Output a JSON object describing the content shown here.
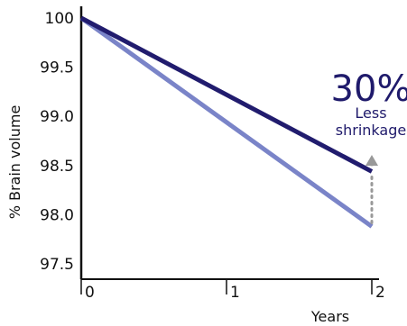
{
  "chart_data": {
    "type": "line",
    "xlabel": "Years",
    "ylabel": "% Brain volume",
    "xlim": [
      0,
      2
    ],
    "ylim": [
      97.5,
      100
    ],
    "x_ticks": [
      "0",
      "1",
      "2"
    ],
    "y_ticks": [
      "100",
      "99.5",
      "99.0",
      "98.5",
      "98.0",
      "97.5"
    ],
    "grid": false,
    "series": [
      {
        "color": "#211c6e",
        "x": [
          0,
          2
        ],
        "y": [
          100,
          98.44
        ]
      },
      {
        "color": "#7a84c8",
        "x": [
          0,
          2
        ],
        "y": [
          100,
          97.88
        ]
      }
    ],
    "annotation": {
      "value": "30%",
      "line1": "Less",
      "line2": "shrinkage",
      "arrow_color": "#999999"
    }
  }
}
